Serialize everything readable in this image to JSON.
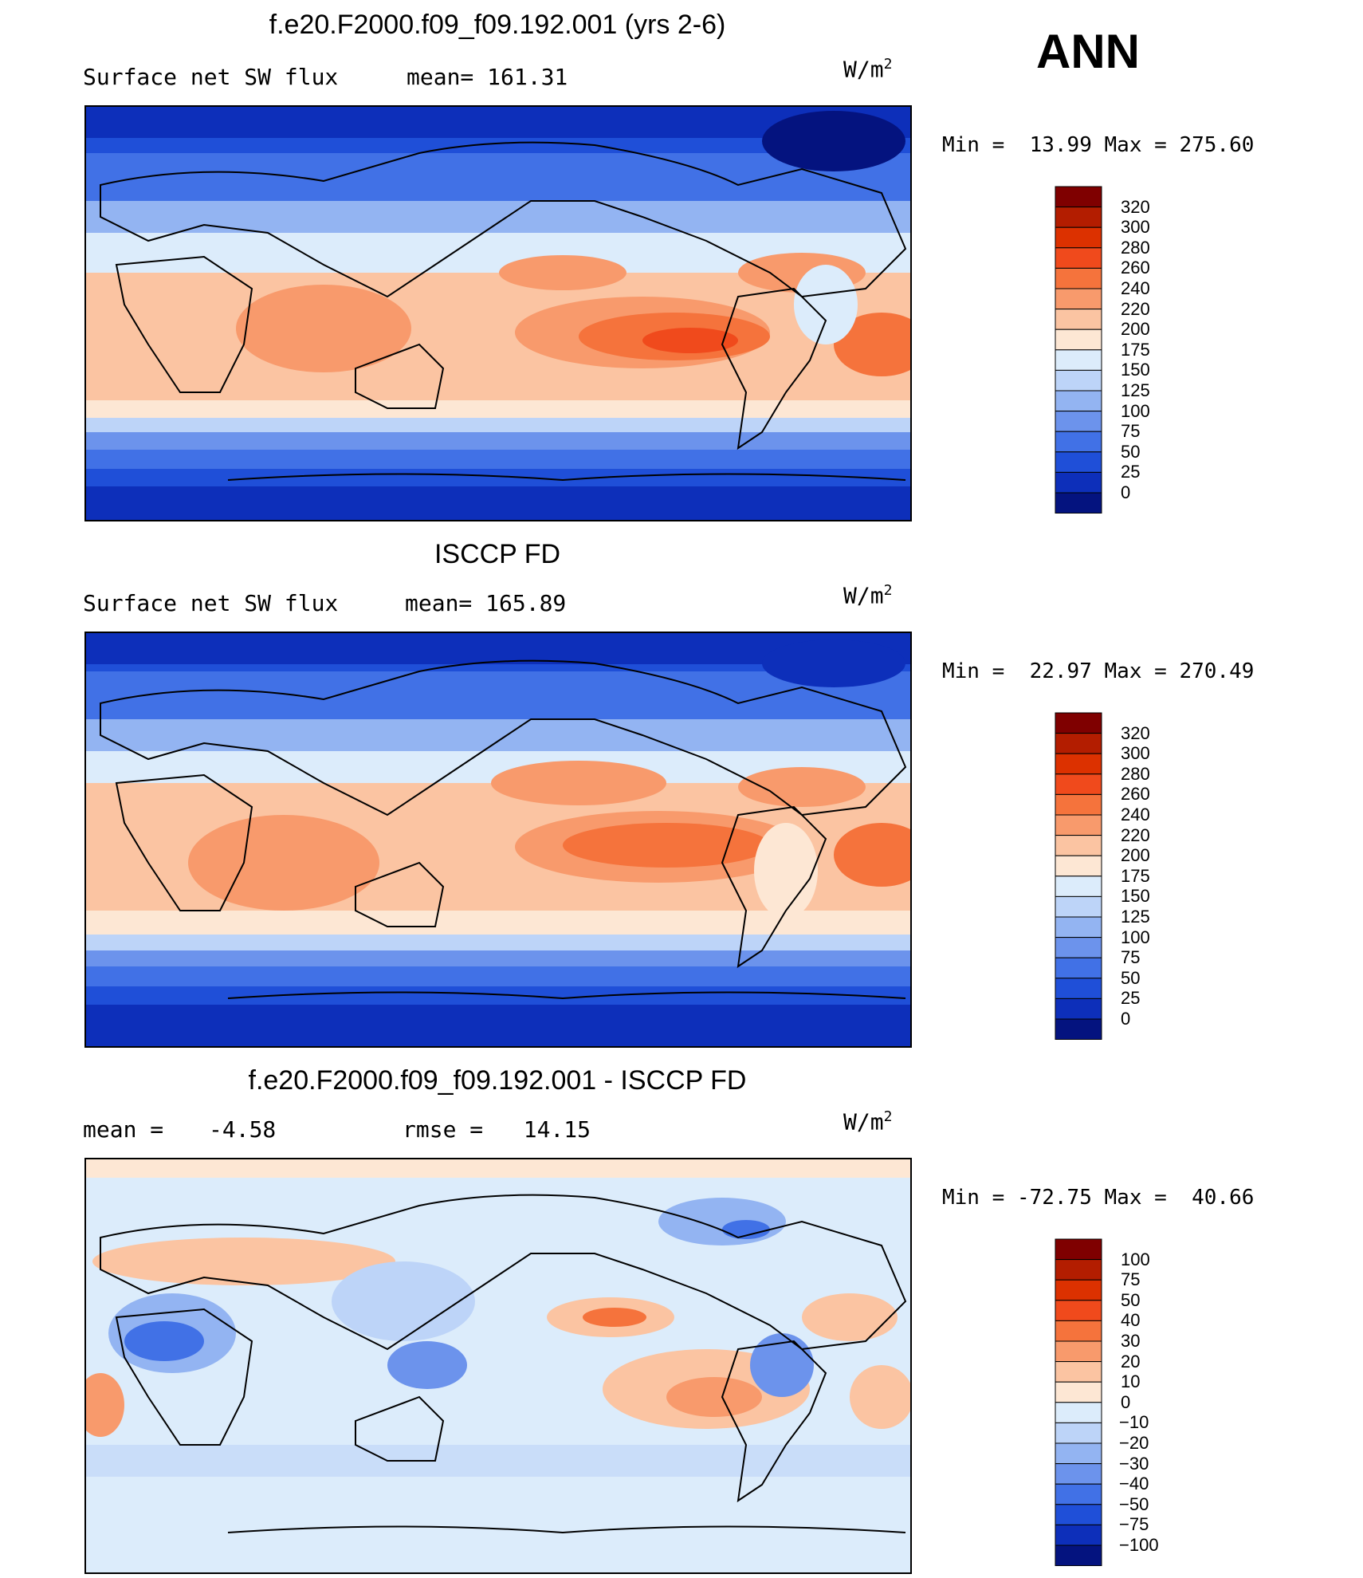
{
  "season": "ANN",
  "panels": [
    {
      "title": "f.e20.F2000.f09_f09.192.001 (yrs 2-6)",
      "variable": "Surface net SW flux",
      "stat1": "mean= 161.31",
      "stat2": "",
      "units": "W/m",
      "units_exp": "2",
      "min_label": "Min =",
      "min_value": "13.99",
      "max_label": "Max =",
      "max_value": "275.60",
      "colorbar": {
        "levels": [
          "320",
          "300",
          "280",
          "260",
          "240",
          "220",
          "200",
          "175",
          "150",
          "125",
          "100",
          "75",
          "50",
          "25",
          "0"
        ],
        "colors": [
          "#7f0000",
          "#b31d00",
          "#dc3100",
          "#f04a1c",
          "#f5733c",
          "#f89a6c",
          "#fbc4a2",
          "#fde7d4",
          "#dcecfb",
          "#bdd4f8",
          "#93b4f2",
          "#6c93ec",
          "#4171e6",
          "#1f4fd8",
          "#0d2fba",
          "#04137f"
        ]
      }
    },
    {
      "title": "ISCCP FD",
      "variable": "Surface net SW flux",
      "stat1": "mean= 165.89",
      "stat2": "",
      "units": "W/m",
      "units_exp": "2",
      "min_label": "Min =",
      "min_value": "22.97",
      "max_label": "Max =",
      "max_value": "270.49",
      "colorbar": {
        "levels": [
          "320",
          "300",
          "280",
          "260",
          "240",
          "220",
          "200",
          "175",
          "150",
          "125",
          "100",
          "75",
          "50",
          "25",
          "0"
        ],
        "colors": [
          "#7f0000",
          "#b31d00",
          "#dc3100",
          "#f04a1c",
          "#f5733c",
          "#f89a6c",
          "#fbc4a2",
          "#fde7d4",
          "#dcecfb",
          "#bdd4f8",
          "#93b4f2",
          "#6c93ec",
          "#4171e6",
          "#1f4fd8",
          "#0d2fba",
          "#04137f"
        ]
      }
    },
    {
      "title": "f.e20.F2000.f09_f09.192.001 - ISCCP FD",
      "variable": "mean =",
      "stat1": "-4.58",
      "stat2": "rmse =   14.15",
      "units": "W/m",
      "units_exp": "2",
      "min_label": "Min =",
      "min_value": "-72.75",
      "max_label": "Max =",
      "max_value": "40.66",
      "colorbar": {
        "levels": [
          "100",
          "75",
          "50",
          "40",
          "30",
          "20",
          "10",
          "0",
          "-10",
          "-20",
          "-30",
          "-40",
          "-50",
          "-75",
          "-100"
        ],
        "colors": [
          "#7f0000",
          "#b31d00",
          "#dc3100",
          "#f04a1c",
          "#f5733c",
          "#f89a6c",
          "#fbc4a2",
          "#fde7d4",
          "#dcecfb",
          "#bdd4f8",
          "#93b4f2",
          "#6c93ec",
          "#4171e6",
          "#1f4fd8",
          "#0d2fba",
          "#04137f"
        ]
      }
    }
  ]
}
